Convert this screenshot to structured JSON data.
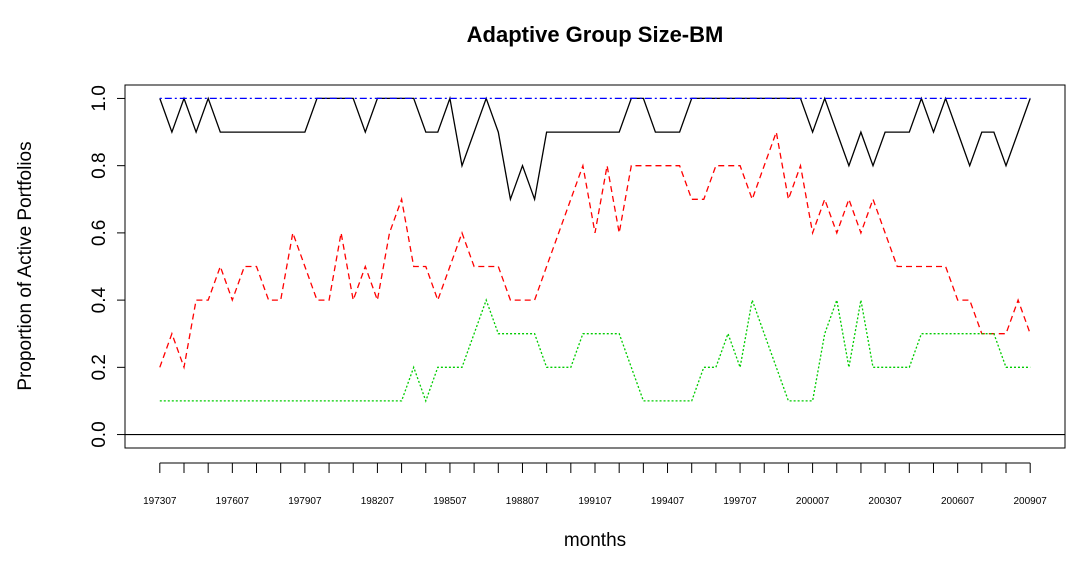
{
  "chart_data": {
    "type": "line",
    "title": "Adaptive Group Size-BM",
    "x_label": "months",
    "y_label": "Proportion of Active Portfolios",
    "categories": [
      "197307",
      null,
      null,
      null,
      null,
      null,
      "197607",
      null,
      null,
      null,
      null,
      null,
      "197907",
      null,
      null,
      null,
      null,
      null,
      "198207",
      null,
      null,
      null,
      null,
      null,
      "198507",
      null,
      null,
      null,
      null,
      null,
      "198807",
      null,
      null,
      null,
      null,
      null,
      "199107",
      null,
      null,
      null,
      null,
      null,
      "199407",
      null,
      null,
      null,
      null,
      null,
      "199707",
      null,
      null,
      null,
      null,
      null,
      "200007",
      null,
      null,
      null,
      null,
      null,
      "200307",
      null,
      null,
      null,
      null,
      null,
      "200607",
      null,
      null,
      null,
      null,
      null,
      "200907"
    ],
    "series": [
      {
        "color": "#000000",
        "linestyle": "solid",
        "values": [
          1.0,
          0.9,
          1.0,
          0.9,
          1.0,
          0.9,
          0.9,
          0.9,
          0.9,
          0.9,
          0.9,
          0.9,
          0.9,
          1.0,
          1.0,
          1.0,
          1.0,
          0.9,
          1.0,
          1.0,
          1.0,
          1.0,
          0.9,
          0.9,
          1.0,
          0.8,
          0.9,
          1.0,
          0.9,
          0.7,
          0.8,
          0.7,
          0.9,
          0.9,
          0.9,
          0.9,
          0.9,
          0.9,
          0.9,
          1.0,
          1.0,
          0.9,
          0.9,
          0.9,
          1.0,
          1.0,
          1.0,
          1.0,
          1.0,
          1.0,
          1.0,
          1.0,
          1.0,
          1.0,
          0.9,
          1.0,
          0.9,
          0.8,
          0.9,
          0.8,
          0.9,
          0.9,
          0.9,
          1.0,
          0.9,
          1.0,
          0.9,
          0.8,
          0.9,
          0.9,
          0.8,
          0.9,
          1.0
        ]
      },
      {
        "color": "#0000ff",
        "linestyle": "dotdash",
        "values": [
          1.0,
          1.0,
          1.0,
          1.0,
          1.0,
          1.0,
          1.0,
          1.0,
          1.0,
          1.0,
          1.0,
          1.0,
          1.0,
          1.0,
          1.0,
          1.0,
          1.0,
          1.0,
          1.0,
          1.0,
          1.0,
          1.0,
          1.0,
          1.0,
          1.0,
          1.0,
          1.0,
          1.0,
          1.0,
          1.0,
          1.0,
          1.0,
          1.0,
          1.0,
          1.0,
          1.0,
          1.0,
          1.0,
          1.0,
          1.0,
          1.0,
          1.0,
          1.0,
          1.0,
          1.0,
          1.0,
          1.0,
          1.0,
          1.0,
          1.0,
          1.0,
          1.0,
          1.0,
          1.0,
          1.0,
          1.0,
          1.0,
          1.0,
          1.0,
          1.0,
          1.0,
          1.0,
          1.0,
          1.0,
          1.0,
          1.0,
          1.0,
          1.0,
          1.0,
          1.0,
          1.0,
          1.0,
          1.0
        ]
      },
      {
        "color": "#ff0000",
        "linestyle": "dashed",
        "values": [
          0.2,
          0.3,
          0.2,
          0.4,
          0.4,
          0.5,
          0.4,
          0.5,
          0.5,
          0.4,
          0.4,
          0.6,
          0.5,
          0.4,
          0.4,
          0.6,
          0.4,
          0.5,
          0.4,
          0.6,
          0.7,
          0.5,
          0.5,
          0.4,
          0.5,
          0.6,
          0.5,
          0.5,
          0.5,
          0.4,
          0.4,
          0.4,
          0.5,
          0.6,
          0.7,
          0.8,
          0.6,
          0.8,
          0.6,
          0.8,
          0.8,
          0.8,
          0.8,
          0.8,
          0.7,
          0.7,
          0.8,
          0.8,
          0.8,
          0.7,
          0.8,
          0.9,
          0.7,
          0.8,
          0.6,
          0.7,
          0.6,
          0.7,
          0.6,
          0.7,
          0.6,
          0.5,
          0.5,
          0.5,
          0.5,
          0.5,
          0.4,
          0.4,
          0.3,
          0.3,
          0.3,
          0.4,
          0.3
        ]
      },
      {
        "color": "#00cc00",
        "linestyle": "dotted",
        "values": [
          0.1,
          0.1,
          0.1,
          0.1,
          0.1,
          0.1,
          0.1,
          0.1,
          0.1,
          0.1,
          0.1,
          0.1,
          0.1,
          0.1,
          0.1,
          0.1,
          0.1,
          0.1,
          0.1,
          0.1,
          0.1,
          0.2,
          0.1,
          0.2,
          0.2,
          0.2,
          0.3,
          0.4,
          0.3,
          0.3,
          0.3,
          0.3,
          0.2,
          0.2,
          0.2,
          0.3,
          0.3,
          0.3,
          0.3,
          0.2,
          0.1,
          0.1,
          0.1,
          0.1,
          0.1,
          0.2,
          0.2,
          0.3,
          0.2,
          0.4,
          0.3,
          0.2,
          0.1,
          0.1,
          0.1,
          0.3,
          0.4,
          0.2,
          0.4,
          0.2,
          0.2,
          0.2,
          0.2,
          0.3,
          0.3,
          0.3,
          0.3,
          0.3,
          0.3,
          0.3,
          0.2,
          0.2,
          0.2
        ]
      }
    ],
    "ylim": [
      -0.04,
      1.04
    ],
    "yticks": [
      {
        "value": 0,
        "label": "0.0"
      },
      0.2,
      0.4,
      0.6,
      0.8,
      {
        "value": 1,
        "label": "1.0"
      }
    ],
    "hline": 0
  }
}
